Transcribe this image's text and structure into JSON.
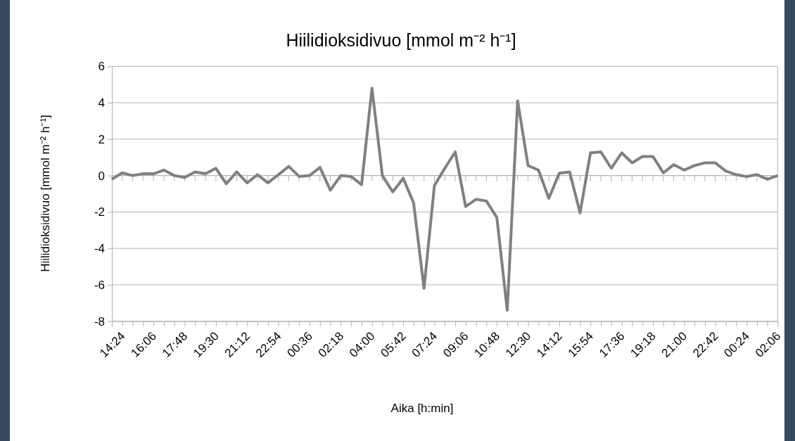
{
  "chart_data": {
    "type": "line",
    "title": "Hiilidioksidivuo [mmol m⁻² h⁻¹]",
    "xlabel": "Aika [h:min]",
    "ylabel": "Hiilidioksidivuo [mmol m⁻² h⁻¹]",
    "categories": [
      "14:24",
      null,
      null,
      "16:06",
      null,
      null,
      "17:48",
      null,
      null,
      "19:30",
      null,
      null,
      "21:12",
      null,
      null,
      "22:54",
      null,
      null,
      "00:36",
      null,
      null,
      "02:18",
      null,
      null,
      "04:00",
      null,
      null,
      "05:42",
      null,
      null,
      "07:24",
      null,
      null,
      "09:06",
      null,
      null,
      "10:48",
      null,
      null,
      "12:30",
      null,
      null,
      "14:12",
      null,
      null,
      "15:54",
      null,
      null,
      "17:36",
      null,
      null,
      "19:18",
      null,
      null,
      "21:00",
      null,
      null,
      "22:42",
      null,
      null,
      "00:24",
      null,
      null,
      "02:06",
      null
    ],
    "series": [
      {
        "color": "#808080",
        "values": [
          -0.2,
          0.15,
          0,
          0.1,
          0.1,
          0.3,
          0,
          -0.1,
          0.2,
          0.1,
          0.4,
          -0.45,
          0.2,
          -0.4,
          0.05,
          -0.4,
          0.05,
          0.5,
          -0.05,
          0,
          0.45,
          -0.8,
          0,
          -0.05,
          -0.5,
          4.8,
          0,
          -0.9,
          -0.15,
          -1.5,
          -6.2,
          -0.55,
          0.4,
          1.3,
          -1.7,
          -1.3,
          -1.4,
          -2.3,
          -7.4,
          4.1,
          0.55,
          0.3,
          -1.25,
          0.13,
          0.2,
          -2.05,
          1.25,
          1.3,
          0.4,
          1.25,
          0.7,
          1.05,
          1.05,
          0.15,
          0.6,
          0.3,
          0.55,
          0.7,
          0.7,
          0.25,
          0.05,
          -0.05,
          0.05,
          -0.2,
          0
        ]
      }
    ],
    "ylim": [
      -8,
      6
    ],
    "yticks": [
      -8,
      -6,
      -4,
      -2,
      0,
      2,
      4,
      6
    ],
    "grid": "y"
  }
}
